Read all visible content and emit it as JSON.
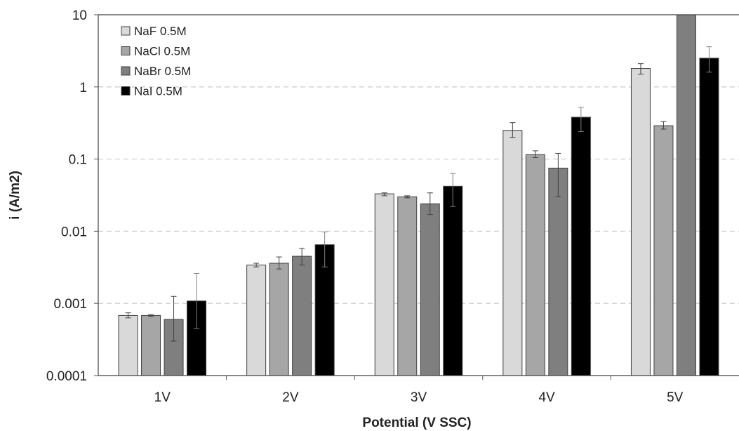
{
  "chart_data": {
    "type": "bar",
    "title": "",
    "xlabel": "Potential (V SSC)",
    "ylabel": "i (A/m2)",
    "yscale": "log",
    "ylim": [
      0.0001,
      10
    ],
    "yticks": [
      0.0001,
      0.001,
      0.01,
      0.1,
      1,
      10
    ],
    "ytick_labels": [
      "0.0001",
      "0.001",
      "0.01",
      "0.1",
      "1",
      "10"
    ],
    "grid": "horizontal-dashed",
    "legend_position": "top-left",
    "categories": [
      "1V",
      "2V",
      "3V",
      "4V",
      "5V"
    ],
    "series": [
      {
        "name": "NaF 0.5M",
        "color": "#d9d9d9",
        "values": [
          0.00068,
          0.0034,
          0.033,
          0.25,
          1.8
        ],
        "err_low": [
          0.00063,
          0.0032,
          0.031,
          0.2,
          1.5
        ],
        "err_high": [
          0.00074,
          0.0036,
          0.034,
          0.32,
          2.1
        ]
      },
      {
        "name": "NaCl 0.5M",
        "color": "#a6a6a6",
        "values": [
          0.00068,
          0.0036,
          0.03,
          0.115,
          0.29
        ],
        "err_low": [
          0.00066,
          0.003,
          0.029,
          0.105,
          0.26
        ],
        "err_high": [
          0.0007,
          0.0044,
          0.031,
          0.13,
          0.33
        ]
      },
      {
        "name": "NaBr 0.5M",
        "color": "#7f7f7f",
        "values": [
          0.0006,
          0.0045,
          0.024,
          0.075,
          10
        ],
        "err_low": [
          0.0003,
          0.0034,
          0.017,
          0.03,
          10
        ],
        "err_high": [
          0.00125,
          0.0058,
          0.034,
          0.12,
          10
        ]
      },
      {
        "name": "NaI 0.5M",
        "color": "#000000",
        "values": [
          0.00108,
          0.0065,
          0.042,
          0.38,
          2.5
        ],
        "err_low": [
          0.00045,
          0.0032,
          0.022,
          0.24,
          1.6
        ],
        "err_high": [
          0.0026,
          0.0098,
          0.063,
          0.52,
          3.6
        ]
      }
    ]
  }
}
